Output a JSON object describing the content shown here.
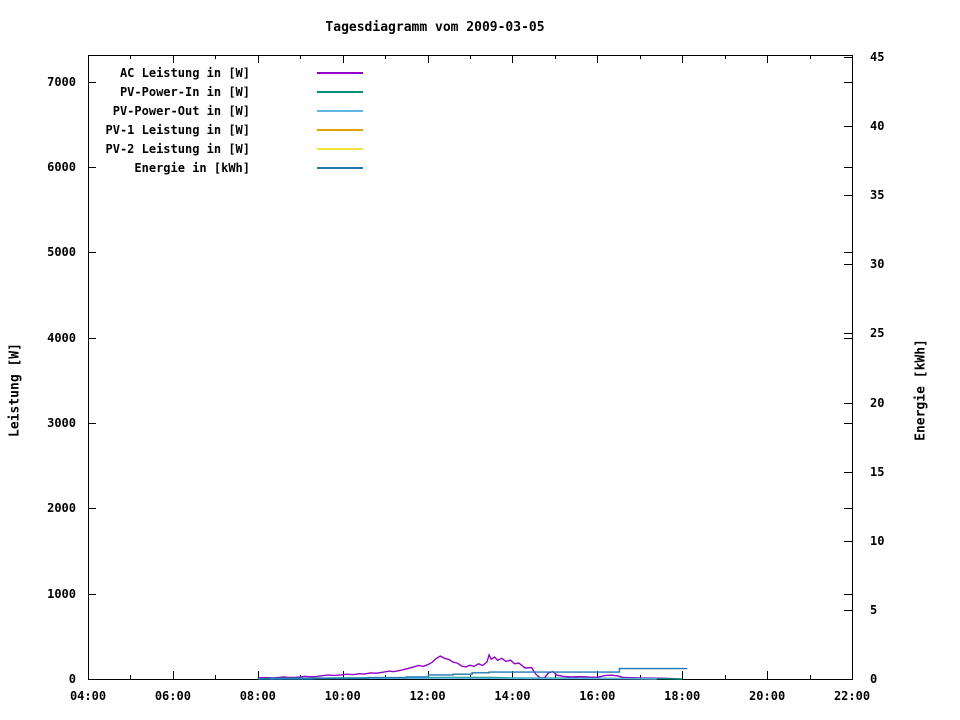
{
  "title": "Tagesdiagramm vom 2009-03-05",
  "axes": {
    "x": {
      "major_hours": [
        4,
        6,
        8,
        10,
        12,
        14,
        16,
        18,
        20,
        22
      ],
      "minor_hours": [
        5,
        7,
        9,
        11,
        13,
        15,
        17,
        19,
        21
      ],
      "tick_labels": [
        "04:00",
        "06:00",
        "08:00",
        "10:00",
        "12:00",
        "14:00",
        "16:00",
        "18:00",
        "20:00",
        "22:00"
      ]
    },
    "y_left": {
      "title": "Leistung [W]",
      "tick_values": [
        0,
        1000,
        2000,
        3000,
        4000,
        5000,
        6000,
        7000
      ],
      "tick_labels": [
        "0",
        "1000",
        "2000",
        "3000",
        "4000",
        "5000",
        "6000",
        "7000"
      ]
    },
    "y_right": {
      "title": "Energie [kWh]",
      "tick_values": [
        0,
        5,
        10,
        15,
        20,
        25,
        30,
        35,
        40,
        45
      ],
      "tick_labels": [
        "0",
        "5",
        "10",
        "15",
        "20",
        "25",
        "30",
        "35",
        "40",
        "45"
      ]
    }
  },
  "legend": {
    "items": [
      {
        "label": "AC Leistung in [W]",
        "color": "#9402CE"
      },
      {
        "label": "PV-Power-In in [W]",
        "color": "#00917E"
      },
      {
        "label": "PV-Power-Out in [W]",
        "color": "#5FB7E8"
      },
      {
        "label": "PV-1 Leistung in [W]",
        "color": "#DFA300"
      },
      {
        "label": "PV-2 Leistung in [W]",
        "color": "#EFE33C"
      },
      {
        "label": "Energie in [kWh]",
        "color": "#1F77B4"
      }
    ]
  },
  "chart_data": {
    "type": "line",
    "title": "Tagesdiagramm vom 2009-03-05",
    "x_unit": "hour_of_day",
    "x_range": [
      4,
      22
    ],
    "y_left_label": "Leistung [W]",
    "y_left_shown_ticks": [
      0,
      7000
    ],
    "y_left_max": 7312,
    "y_right_label": "Energie [kWh]",
    "y_right_shown_ticks": [
      0,
      45
    ],
    "y_right_max": 45.15,
    "grid": false,
    "legend_position": "top-left-inside",
    "series": [
      {
        "name": "AC Leistung in [W]",
        "color": "#9402CE",
        "axis": "left",
        "style": "line",
        "points": [
          [
            8.0,
            0
          ],
          [
            8.05,
            14
          ],
          [
            8.2,
            16
          ],
          [
            8.35,
            12
          ],
          [
            8.5,
            18
          ],
          [
            8.6,
            24
          ],
          [
            8.75,
            17
          ],
          [
            8.9,
            20
          ],
          [
            9.0,
            24
          ],
          [
            9.1,
            32
          ],
          [
            9.25,
            26
          ],
          [
            9.4,
            30
          ],
          [
            9.5,
            38
          ],
          [
            9.65,
            46
          ],
          [
            9.8,
            42
          ],
          [
            9.95,
            48
          ],
          [
            10.1,
            56
          ],
          [
            10.25,
            52
          ],
          [
            10.4,
            62
          ],
          [
            10.5,
            58
          ],
          [
            10.65,
            72
          ],
          [
            10.8,
            68
          ],
          [
            10.95,
            80
          ],
          [
            11.1,
            92
          ],
          [
            11.2,
            86
          ],
          [
            11.35,
            100
          ],
          [
            11.5,
            118
          ],
          [
            11.65,
            138
          ],
          [
            11.8,
            158
          ],
          [
            11.9,
            148
          ],
          [
            12.0,
            168
          ],
          [
            12.1,
            192
          ],
          [
            12.2,
            238
          ],
          [
            12.3,
            268
          ],
          [
            12.4,
            242
          ],
          [
            12.5,
            230
          ],
          [
            12.6,
            198
          ],
          [
            12.7,
            186
          ],
          [
            12.8,
            152
          ],
          [
            12.9,
            142
          ],
          [
            13.0,
            162
          ],
          [
            13.1,
            148
          ],
          [
            13.2,
            178
          ],
          [
            13.3,
            158
          ],
          [
            13.4,
            200
          ],
          [
            13.45,
            282
          ],
          [
            13.5,
            232
          ],
          [
            13.58,
            258
          ],
          [
            13.65,
            218
          ],
          [
            13.75,
            242
          ],
          [
            13.85,
            205
          ],
          [
            13.95,
            222
          ],
          [
            14.05,
            178
          ],
          [
            14.15,
            188
          ],
          [
            14.3,
            128
          ],
          [
            14.45,
            135
          ],
          [
            14.55,
            58
          ],
          [
            14.65,
            14
          ],
          [
            14.75,
            12
          ],
          [
            14.85,
            70
          ],
          [
            14.95,
            88
          ],
          [
            15.05,
            45
          ],
          [
            15.2,
            30
          ],
          [
            15.4,
            24
          ],
          [
            15.6,
            28
          ],
          [
            15.8,
            22
          ],
          [
            16.0,
            20
          ],
          [
            16.2,
            42
          ],
          [
            16.35,
            45
          ],
          [
            16.5,
            34
          ],
          [
            16.6,
            18
          ],
          [
            16.8,
            15
          ],
          [
            17.0,
            12
          ],
          [
            17.3,
            10
          ],
          [
            17.6,
            8
          ],
          [
            17.9,
            0
          ]
        ]
      },
      {
        "name": "PV-Power-In in [W]",
        "color": "#00917E",
        "axis": "left",
        "style": "line",
        "points": [
          [
            8.0,
            0
          ],
          [
            8.3,
            6
          ],
          [
            8.7,
            9
          ],
          [
            9.2,
            10
          ],
          [
            10.0,
            12
          ],
          [
            11.0,
            14
          ],
          [
            12.0,
            16
          ],
          [
            12.5,
            18
          ],
          [
            13.0,
            17
          ],
          [
            13.5,
            18
          ],
          [
            14.0,
            13
          ],
          [
            14.5,
            10
          ],
          [
            15.0,
            10
          ],
          [
            15.5,
            9
          ],
          [
            16.0,
            8
          ],
          [
            16.5,
            7
          ],
          [
            17.0,
            5
          ],
          [
            17.5,
            4
          ],
          [
            18.0,
            0
          ]
        ]
      },
      {
        "name": "PV-Power-Out in [W]",
        "color": "#5FB7E8",
        "axis": "left",
        "style": "line",
        "points": [
          [
            8.3,
            0
          ],
          [
            8.8,
            4
          ],
          [
            9.5,
            6
          ],
          [
            10.5,
            7
          ],
          [
            11.5,
            8
          ],
          [
            12.5,
            9
          ],
          [
            13.5,
            8
          ],
          [
            14.5,
            6
          ],
          [
            15.5,
            5
          ],
          [
            16.5,
            4
          ],
          [
            17.4,
            0
          ]
        ]
      },
      {
        "name": "PV-1 Leistung in [W]",
        "color": "#DFA300",
        "axis": "left",
        "style": "line",
        "points": []
      },
      {
        "name": "PV-2 Leistung in [W]",
        "color": "#EFE33C",
        "axis": "left",
        "style": "line",
        "points": []
      },
      {
        "name": "Energie in [kWh]",
        "color": "#1F77B4",
        "axis": "right",
        "style": "steps",
        "points": [
          [
            8.0,
            0
          ],
          [
            9.3,
            0.05
          ],
          [
            10.6,
            0.1
          ],
          [
            11.5,
            0.15
          ],
          [
            12.02,
            0.3
          ],
          [
            12.6,
            0.35
          ],
          [
            13.05,
            0.45
          ],
          [
            13.45,
            0.5
          ],
          [
            16.52,
            0.75
          ],
          [
            18.12,
            0.75
          ]
        ]
      }
    ]
  }
}
